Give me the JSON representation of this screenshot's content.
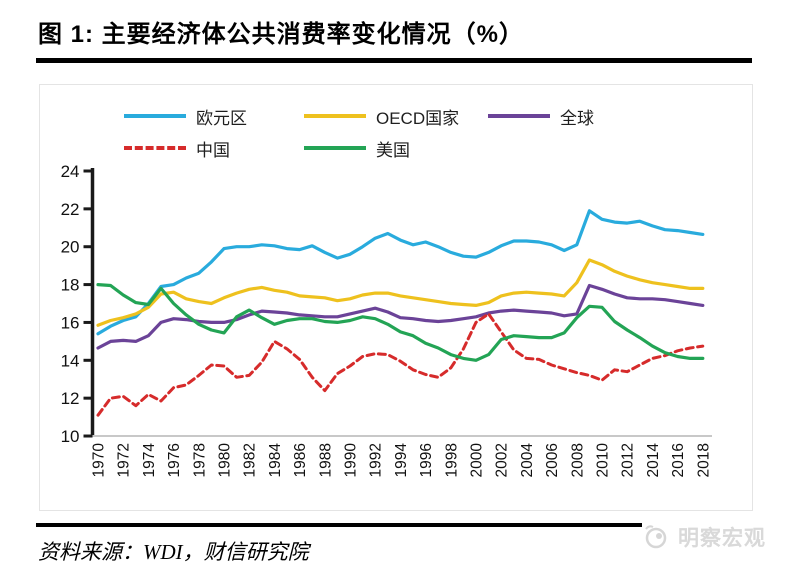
{
  "page": {
    "title": "图 1:  主要经济体公共消费率变化情况（%）",
    "source": "资料来源：WDI，财信研究院",
    "watermark": "明察宏观"
  },
  "axis_color": "#1a1a1a",
  "baseline_color": "#c8c8c8",
  "chart_data": {
    "type": "line",
    "title": "主要经济体公共消费率变化情况（%）",
    "xlabel": "",
    "ylabel": "",
    "ylim": [
      10,
      24
    ],
    "y_ticks": [
      24,
      22,
      20,
      18,
      16,
      14,
      12,
      10
    ],
    "x_tick_step": 2,
    "grid": false,
    "legend_position": "top-inside",
    "years": [
      1970,
      1971,
      1972,
      1973,
      1974,
      1975,
      1976,
      1977,
      1978,
      1979,
      1980,
      1981,
      1982,
      1983,
      1984,
      1985,
      1986,
      1987,
      1988,
      1989,
      1990,
      1991,
      1992,
      1993,
      1994,
      1995,
      1996,
      1997,
      1998,
      1999,
      2000,
      2001,
      2002,
      2003,
      2004,
      2005,
      2006,
      2007,
      2008,
      2009,
      2010,
      2011,
      2012,
      2013,
      2014,
      2015,
      2016,
      2017,
      2018
    ],
    "series": [
      {
        "name": "欧元区",
        "color": "#29abdd",
        "style": "solid",
        "values": [
          15.4,
          15.8,
          16.1,
          16.3,
          17.0,
          17.9,
          18.0,
          18.35,
          18.6,
          19.2,
          19.9,
          20.0,
          20.0,
          20.1,
          20.05,
          19.9,
          19.85,
          20.05,
          19.7,
          19.4,
          19.6,
          20.0,
          20.45,
          20.7,
          20.35,
          20.1,
          20.25,
          20.0,
          19.7,
          19.5,
          19.45,
          19.7,
          20.05,
          20.3,
          20.3,
          20.25,
          20.1,
          19.8,
          20.1,
          21.9,
          21.45,
          21.3,
          21.25,
          21.35,
          21.1,
          20.9,
          20.85,
          20.75,
          20.65
        ]
      },
      {
        "name": "OECD国家",
        "color": "#eec11e",
        "style": "solid",
        "values": [
          15.85,
          16.1,
          16.25,
          16.45,
          16.8,
          17.5,
          17.6,
          17.25,
          17.1,
          17.0,
          17.3,
          17.55,
          17.75,
          17.85,
          17.7,
          17.6,
          17.4,
          17.35,
          17.3,
          17.15,
          17.25,
          17.45,
          17.55,
          17.55,
          17.4,
          17.3,
          17.2,
          17.1,
          17.0,
          16.95,
          16.9,
          17.05,
          17.4,
          17.55,
          17.6,
          17.55,
          17.5,
          17.4,
          18.1,
          19.3,
          19.05,
          18.7,
          18.45,
          18.25,
          18.1,
          18.0,
          17.9,
          17.8,
          17.8
        ]
      },
      {
        "name": "全球",
        "color": "#6b4398",
        "style": "solid",
        "values": [
          14.65,
          15.0,
          15.05,
          15.0,
          15.3,
          16.0,
          16.2,
          16.15,
          16.05,
          16.0,
          16.0,
          16.15,
          16.4,
          16.6,
          16.55,
          16.5,
          16.4,
          16.35,
          16.3,
          16.3,
          16.45,
          16.6,
          16.75,
          16.55,
          16.25,
          16.2,
          16.1,
          16.05,
          16.1,
          16.2,
          16.3,
          16.5,
          16.6,
          16.65,
          16.6,
          16.55,
          16.5,
          16.35,
          16.45,
          17.95,
          17.75,
          17.5,
          17.3,
          17.25,
          17.25,
          17.2,
          17.1,
          17.0,
          16.9
        ]
      },
      {
        "name": "中国",
        "color": "#d62b2b",
        "style": "dashed",
        "values": [
          11.1,
          12.0,
          12.1,
          11.6,
          12.2,
          11.85,
          12.55,
          12.7,
          13.2,
          13.75,
          13.7,
          13.1,
          13.2,
          13.9,
          15.0,
          14.6,
          14.05,
          13.1,
          12.4,
          13.3,
          13.7,
          14.2,
          14.35,
          14.3,
          13.95,
          13.5,
          13.25,
          13.1,
          13.6,
          14.6,
          16.0,
          16.45,
          15.5,
          14.55,
          14.1,
          14.05,
          13.75,
          13.55,
          13.35,
          13.2,
          12.95,
          13.5,
          13.4,
          13.75,
          14.1,
          14.25,
          14.5,
          14.65,
          14.75
        ]
      },
      {
        "name": "美国",
        "color": "#23a455",
        "style": "solid",
        "values": [
          18.0,
          17.95,
          17.45,
          17.05,
          16.95,
          17.8,
          17.0,
          16.4,
          15.9,
          15.6,
          15.45,
          16.3,
          16.65,
          16.25,
          15.9,
          16.1,
          16.2,
          16.2,
          16.05,
          16.0,
          16.1,
          16.3,
          16.2,
          15.9,
          15.5,
          15.3,
          14.9,
          14.65,
          14.3,
          14.1,
          14.0,
          14.3,
          15.1,
          15.3,
          15.25,
          15.2,
          15.2,
          15.45,
          16.25,
          16.85,
          16.8,
          16.05,
          15.6,
          15.2,
          14.75,
          14.4,
          14.2,
          14.1,
          14.1
        ]
      }
    ]
  },
  "legend_layout": {
    "rows": [
      [
        0,
        1,
        2
      ],
      [
        3,
        4
      ]
    ],
    "row_tops": [
      22,
      54
    ],
    "col_lefts": [
      84,
      264,
      448
    ]
  }
}
